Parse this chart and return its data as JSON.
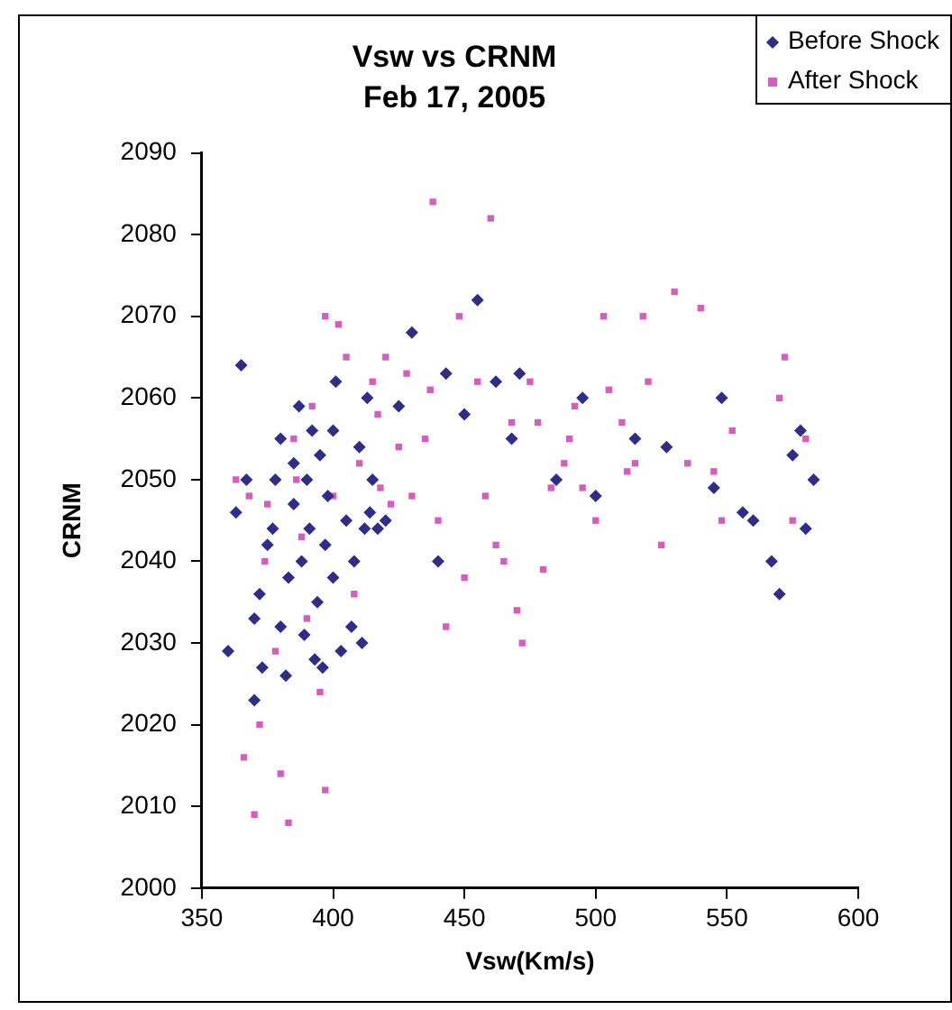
{
  "chart_data": {
    "type": "scatter",
    "title": "Vsw vs CRNM",
    "subtitle": "Feb 17, 2005",
    "xlabel": "Vsw(Km/s)",
    "ylabel": "CRNM",
    "xlim": [
      350,
      600
    ],
    "xticks": [
      350,
      400,
      450,
      500,
      550,
      600
    ],
    "ylim": [
      2000,
      2090
    ],
    "yticks": [
      2000,
      2010,
      2020,
      2030,
      2040,
      2050,
      2060,
      2070,
      2080,
      2090
    ],
    "grid": false,
    "legend": "top right",
    "series": [
      {
        "name": "Before Shock",
        "color": "#2e2e8a",
        "marker": "diamond",
        "x": [
          360,
          363,
          365,
          367,
          370,
          370,
          372,
          373,
          375,
          377,
          378,
          380,
          380,
          382,
          383,
          385,
          385,
          387,
          388,
          389,
          390,
          391,
          392,
          393,
          394,
          395,
          396,
          397,
          398,
          400,
          400,
          401,
          403,
          405,
          407,
          408,
          410,
          411,
          412,
          413,
          414,
          415,
          417,
          420,
          425,
          430,
          440,
          443,
          450,
          455,
          462,
          468,
          471,
          485,
          495,
          500,
          515,
          527,
          545,
          548,
          556,
          560,
          567,
          570,
          575,
          578,
          580,
          583
        ],
        "values": [
          2029,
          2046,
          2064,
          2050,
          2023,
          2033,
          2036,
          2027,
          2042,
          2044,
          2050,
          2032,
          2055,
          2026,
          2038,
          2047,
          2052,
          2059,
          2040,
          2031,
          2050,
          2044,
          2056,
          2028,
          2035,
          2053,
          2027,
          2042,
          2048,
          2038,
          2056,
          2062,
          2029,
          2045,
          2032,
          2040,
          2054,
          2030,
          2044,
          2060,
          2046,
          2050,
          2044,
          2045,
          2059,
          2068,
          2040,
          2063,
          2058,
          2072,
          2062,
          2055,
          2063,
          2050,
          2060,
          2048,
          2055,
          2054,
          2049,
          2060,
          2046,
          2045,
          2040,
          2036,
          2053,
          2056,
          2044,
          2050
        ]
      },
      {
        "name": "After Shock",
        "color": "#d65cc0",
        "marker": "square",
        "x": [
          363,
          366,
          368,
          370,
          372,
          374,
          375,
          378,
          380,
          383,
          385,
          386,
          388,
          390,
          392,
          395,
          397,
          397,
          400,
          402,
          405,
          408,
          410,
          415,
          417,
          418,
          420,
          422,
          425,
          428,
          430,
          435,
          437,
          438,
          440,
          443,
          448,
          450,
          455,
          458,
          460,
          462,
          465,
          468,
          470,
          472,
          475,
          478,
          480,
          483,
          488,
          490,
          492,
          495,
          500,
          503,
          505,
          510,
          512,
          515,
          518,
          520,
          525,
          530,
          535,
          540,
          545,
          548,
          552,
          570,
          572,
          575,
          580
        ],
        "values": [
          2050,
          2016,
          2048,
          2009,
          2020,
          2040,
          2047,
          2029,
          2014,
          2008,
          2055,
          2050,
          2043,
          2033,
          2059,
          2024,
          2012,
          2070,
          2048,
          2069,
          2065,
          2036,
          2052,
          2062,
          2058,
          2049,
          2065,
          2047,
          2054,
          2063,
          2048,
          2055,
          2061,
          2084,
          2045,
          2032,
          2070,
          2038,
          2062,
          2048,
          2082,
          2042,
          2040,
          2057,
          2034,
          2030,
          2062,
          2057,
          2039,
          2049,
          2052,
          2055,
          2059,
          2049,
          2045,
          2070,
          2061,
          2057,
          2051,
          2052,
          2070,
          2062,
          2042,
          2073,
          2052,
          2071,
          2051,
          2045,
          2056,
          2060,
          2065,
          2045,
          2055
        ]
      }
    ]
  }
}
